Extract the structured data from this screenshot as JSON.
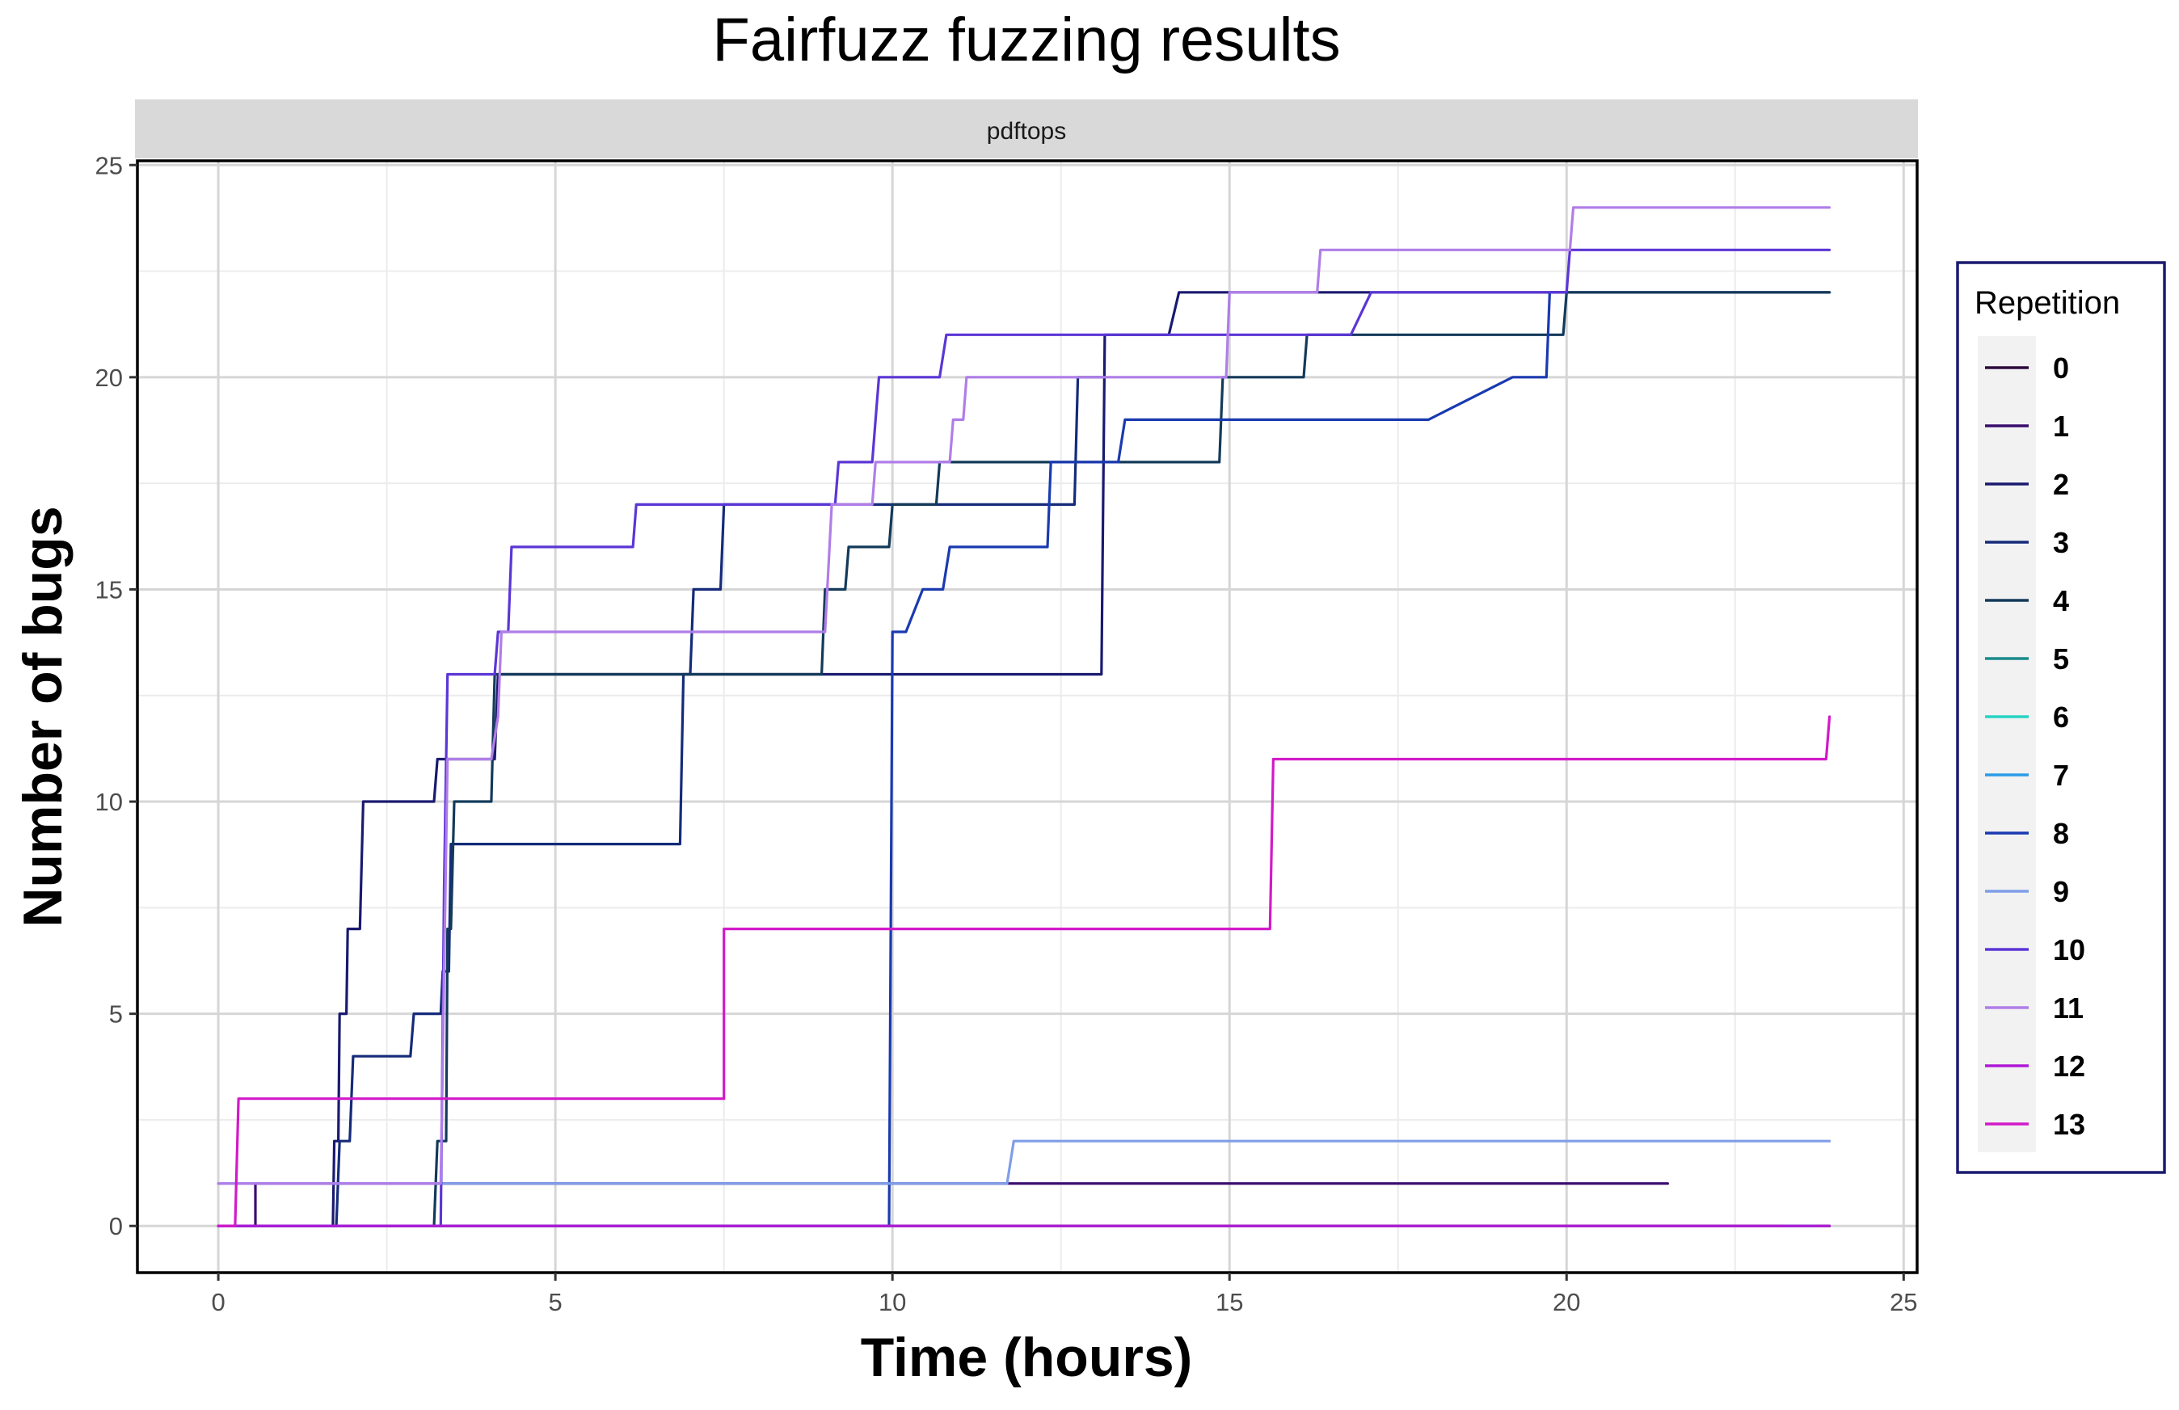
{
  "chart_data": {
    "type": "line",
    "title": "Fairfuzz fuzzing results",
    "facet_label": "pdftops",
    "xlabel": "Time (hours)",
    "ylabel": "Number of bugs",
    "xlim": [
      -1.2,
      25.2
    ],
    "ylim": [
      -1.1,
      25.1
    ],
    "x_ticks": [
      0,
      5,
      10,
      15,
      20,
      25
    ],
    "y_ticks": [
      0,
      5,
      10,
      15,
      20,
      25
    ],
    "grid": true,
    "legend": {
      "title": "Repetition",
      "position": "right"
    },
    "series": [
      {
        "name": "0",
        "color": "#2b0a3d",
        "points": [
          [
            0,
            0
          ],
          [
            23.9,
            0
          ]
        ]
      },
      {
        "name": "1",
        "color": "#3a0c6e",
        "points": [
          [
            0,
            0
          ],
          [
            0.55,
            0
          ],
          [
            0.55,
            1
          ],
          [
            21.5,
            1
          ]
        ]
      },
      {
        "name": "2",
        "color": "#1a1a70",
        "points": [
          [
            0,
            0
          ],
          [
            1.7,
            0
          ],
          [
            1.72,
            2
          ],
          [
            1.78,
            2
          ],
          [
            1.8,
            5
          ],
          [
            1.9,
            5
          ],
          [
            1.92,
            7
          ],
          [
            2.1,
            7
          ],
          [
            2.15,
            10
          ],
          [
            3.2,
            10
          ],
          [
            3.25,
            11
          ],
          [
            4.1,
            11
          ],
          [
            4.15,
            13
          ],
          [
            13.1,
            13
          ],
          [
            13.15,
            21
          ],
          [
            14.1,
            21
          ],
          [
            14.25,
            22
          ],
          [
            23.9,
            22
          ]
        ]
      },
      {
        "name": "3",
        "color": "#152b7a",
        "points": [
          [
            0,
            0
          ],
          [
            1.75,
            0
          ],
          [
            1.8,
            2
          ],
          [
            1.95,
            2
          ],
          [
            2.0,
            4
          ],
          [
            2.85,
            4
          ],
          [
            2.9,
            5
          ],
          [
            3.3,
            5
          ],
          [
            3.33,
            6
          ],
          [
            3.42,
            6
          ],
          [
            3.45,
            9
          ],
          [
            6.85,
            9
          ],
          [
            6.9,
            13
          ],
          [
            7.0,
            13
          ],
          [
            7.05,
            15
          ],
          [
            7.45,
            15
          ],
          [
            7.5,
            17
          ],
          [
            12.7,
            17
          ],
          [
            12.75,
            20
          ],
          [
            13.1,
            20
          ]
        ]
      },
      {
        "name": "4",
        "color": "#133a5a",
        "points": [
          [
            0,
            0
          ],
          [
            3.2,
            0
          ],
          [
            3.25,
            2
          ],
          [
            3.38,
            2
          ],
          [
            3.4,
            7
          ],
          [
            3.45,
            7
          ],
          [
            3.5,
            10
          ],
          [
            4.05,
            10
          ],
          [
            4.1,
            13
          ],
          [
            8.95,
            13
          ],
          [
            9.0,
            15
          ],
          [
            9.3,
            15
          ],
          [
            9.35,
            16
          ],
          [
            9.95,
            16
          ],
          [
            10.0,
            17
          ],
          [
            10.65,
            17
          ],
          [
            10.7,
            18
          ],
          [
            14.85,
            18
          ],
          [
            14.9,
            20
          ],
          [
            16.1,
            20
          ],
          [
            16.15,
            21
          ],
          [
            19.95,
            21
          ],
          [
            20.0,
            22
          ],
          [
            23.9,
            22
          ]
        ]
      },
      {
        "name": "5",
        "color": "#1a8a8a",
        "points": []
      },
      {
        "name": "6",
        "color": "#27d3c4",
        "points": []
      },
      {
        "name": "7",
        "color": "#2b9be8",
        "points": [
          [
            23.2,
            0
          ],
          [
            23.65,
            0
          ]
        ]
      },
      {
        "name": "8",
        "color": "#1a3ab0",
        "points": [
          [
            0,
            0
          ],
          [
            1.65,
            0
          ],
          [
            1.7,
            0
          ],
          [
            3.2,
            0
          ],
          [
            3.5,
            0
          ],
          [
            6.2,
            0
          ],
          [
            9.95,
            0
          ],
          [
            10.0,
            14
          ],
          [
            10.2,
            14
          ],
          [
            10.45,
            15
          ],
          [
            10.75,
            15
          ],
          [
            10.85,
            16
          ],
          [
            12.3,
            16
          ],
          [
            12.35,
            18
          ],
          [
            13.35,
            18
          ],
          [
            13.45,
            19
          ],
          [
            17.95,
            19
          ],
          [
            19.2,
            20
          ],
          [
            19.7,
            20
          ],
          [
            19.75,
            22
          ],
          [
            20.0,
            22
          ]
        ]
      },
      {
        "name": "9",
        "color": "#7f9ee8",
        "points": [
          [
            0,
            1
          ],
          [
            11.7,
            1
          ],
          [
            11.8,
            2
          ],
          [
            23.9,
            2
          ]
        ]
      },
      {
        "name": "10",
        "color": "#5b36d6",
        "points": [
          [
            0,
            0
          ],
          [
            3.3,
            0
          ],
          [
            3.35,
            8
          ],
          [
            3.4,
            13
          ],
          [
            4.1,
            13
          ],
          [
            4.15,
            14
          ],
          [
            4.3,
            14
          ],
          [
            4.35,
            16
          ],
          [
            6.15,
            16
          ],
          [
            6.2,
            17
          ],
          [
            9.15,
            17
          ],
          [
            9.2,
            18
          ],
          [
            9.7,
            18
          ],
          [
            9.75,
            19
          ],
          [
            9.8,
            20
          ],
          [
            10.7,
            20
          ],
          [
            10.8,
            21
          ],
          [
            16.8,
            21
          ],
          [
            17.1,
            22
          ],
          [
            20.0,
            22
          ],
          [
            20.05,
            23
          ],
          [
            23.9,
            23
          ]
        ]
      },
      {
        "name": "11",
        "color": "#b07ee8",
        "points": [
          [
            0,
            1
          ],
          [
            3.3,
            1
          ],
          [
            3.4,
            11
          ],
          [
            4.05,
            11
          ],
          [
            4.15,
            12
          ],
          [
            4.2,
            14
          ],
          [
            9.0,
            14
          ],
          [
            9.1,
            17
          ],
          [
            9.7,
            17
          ],
          [
            9.75,
            18
          ],
          [
            10.85,
            18
          ],
          [
            10.9,
            19
          ],
          [
            11.05,
            19
          ],
          [
            11.1,
            20
          ],
          [
            14.95,
            20
          ],
          [
            15.0,
            22
          ],
          [
            16.3,
            22
          ],
          [
            16.35,
            23
          ],
          [
            20.05,
            23
          ],
          [
            20.1,
            24
          ],
          [
            23.9,
            24
          ]
        ]
      },
      {
        "name": "12",
        "color": "#b01ad6",
        "points": [
          [
            0,
            0
          ],
          [
            23.9,
            0
          ]
        ]
      },
      {
        "name": "13",
        "color": "#d21ac9",
        "points": [
          [
            0,
            0
          ],
          [
            0.25,
            0
          ],
          [
            0.3,
            3
          ],
          [
            7.5,
            3
          ],
          [
            7.5,
            7
          ],
          [
            15.6,
            7
          ],
          [
            15.65,
            11
          ],
          [
            23.85,
            11
          ],
          [
            23.9,
            12
          ]
        ]
      }
    ]
  }
}
